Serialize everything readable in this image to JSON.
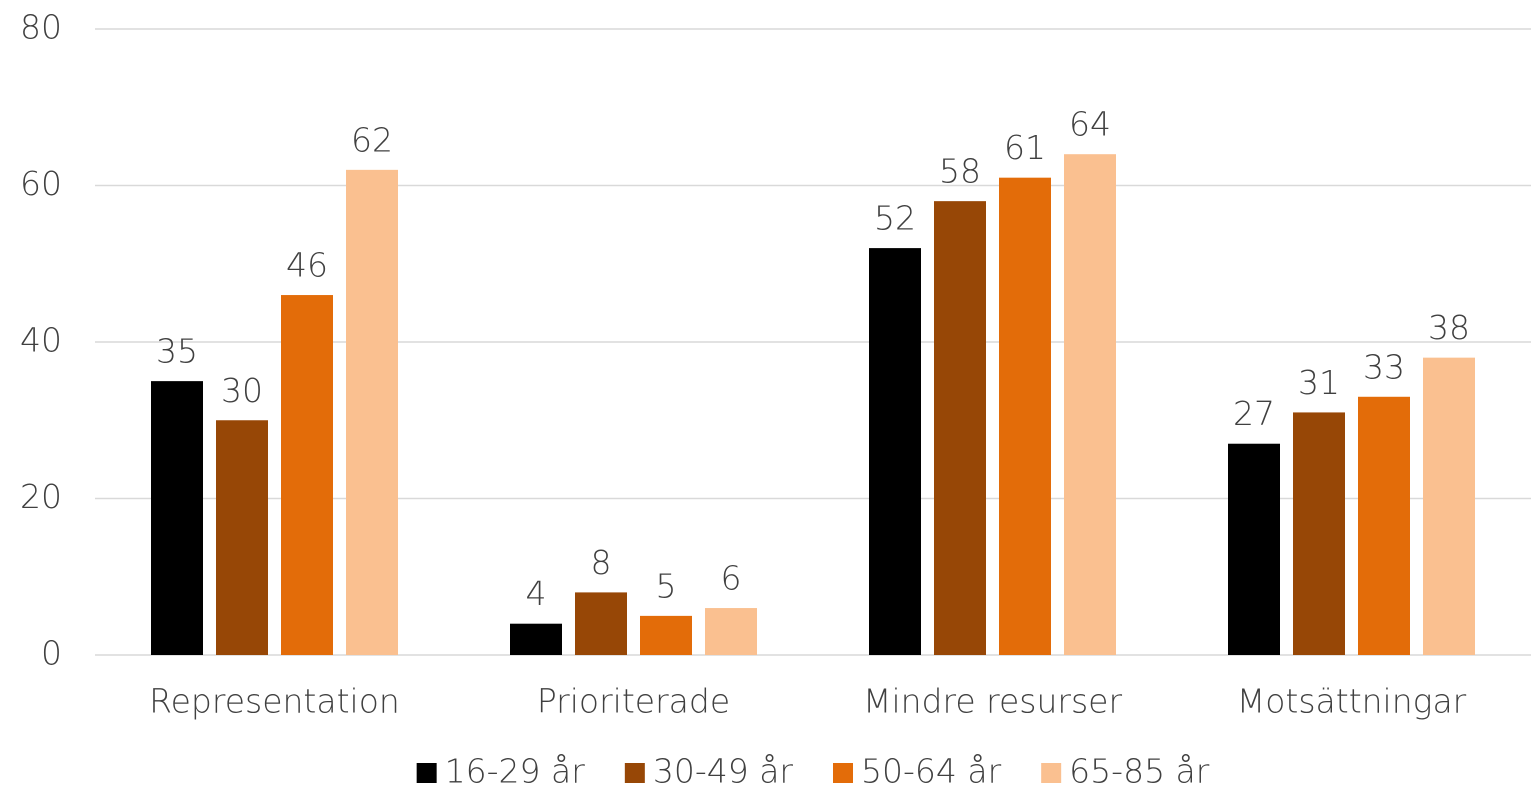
{
  "chart_data": {
    "type": "bar",
    "categories": [
      "Representation",
      "Prioriterade",
      "Mindre resurser",
      "Motsättningar"
    ],
    "series": [
      {
        "name": "16-29 år",
        "color": "#000000",
        "values": [
          35,
          4,
          52,
          27
        ]
      },
      {
        "name": "30-49 år",
        "color": "#974706",
        "values": [
          30,
          8,
          58,
          31
        ]
      },
      {
        "name": "50-64 år",
        "color": "#e36c09",
        "values": [
          46,
          5,
          61,
          33
        ]
      },
      {
        "name": "65-85 år",
        "color": "#fac090",
        "values": [
          62,
          6,
          64,
          38
        ]
      }
    ],
    "ylim": [
      0,
      80
    ],
    "yticks": [
      0,
      20,
      40,
      60,
      80
    ],
    "grid": true,
    "legend": "bottom"
  }
}
